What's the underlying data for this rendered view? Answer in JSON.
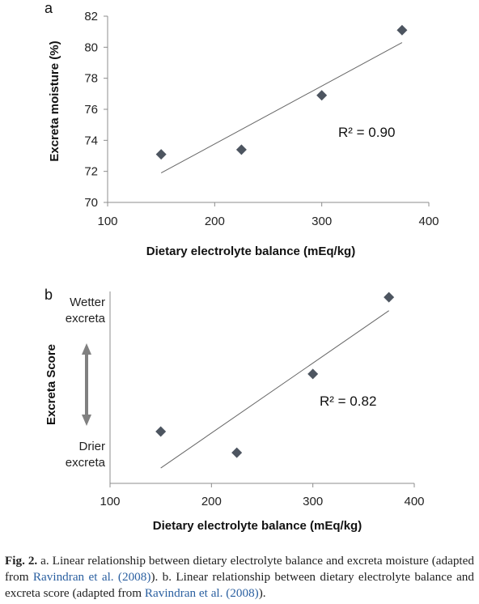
{
  "chart_data": [
    {
      "type": "scatter",
      "panel_label": "a",
      "xlabel": "Dietary electrolyte balance (mEq/kg)",
      "ylabel": "Excreta moisture (%)",
      "xlim": [
        100,
        400
      ],
      "ylim": [
        70,
        82
      ],
      "x_ticks": [
        100,
        200,
        300,
        400
      ],
      "y_ticks": [
        70,
        72,
        74,
        76,
        78,
        80,
        82
      ],
      "points": [
        {
          "x": 150,
          "y": 73.1
        },
        {
          "x": 225,
          "y": 73.4
        },
        {
          "x": 300,
          "y": 76.9
        },
        {
          "x": 375,
          "y": 81.1
        }
      ],
      "trendline": {
        "x": [
          150,
          375
        ],
        "y": [
          71.9,
          80.3
        ]
      },
      "r2_label": "R² = 0.90",
      "marker_color": "#4d5560"
    },
    {
      "type": "scatter",
      "panel_label": "b",
      "xlabel": "Dietary electrolyte balance (mEq/kg)",
      "ylabel": "Excreta Score",
      "xlim": [
        100,
        400
      ],
      "ylim": [
        0,
        1
      ],
      "x_ticks": [
        100,
        200,
        300,
        400
      ],
      "y_top_label": [
        "Wetter",
        "excreta"
      ],
      "y_bottom_label": [
        "Drier",
        "excreta"
      ],
      "points": [
        {
          "x": 150,
          "y": 0.27
        },
        {
          "x": 225,
          "y": 0.16
        },
        {
          "x": 300,
          "y": 0.57
        },
        {
          "x": 375,
          "y": 0.97
        }
      ],
      "trendline": {
        "x": [
          150,
          375
        ],
        "y": [
          0.08,
          0.9
        ]
      },
      "r2_label": "R² = 0.82",
      "marker_color": "#4d5560",
      "arrow_color": "#808080"
    }
  ],
  "caption": {
    "fig_num": "Fig. 2.",
    "part1": " a. Linear relationship between dietary electrolyte balance and excreta moisture (adapted from ",
    "ref1": "Ravindran et al. (2008)",
    "part2": "). b. Linear relationship between dietary electrolyte balance and excreta score (adapted from ",
    "ref2": "Ravindran et al. (2008)",
    "part3": ")."
  }
}
